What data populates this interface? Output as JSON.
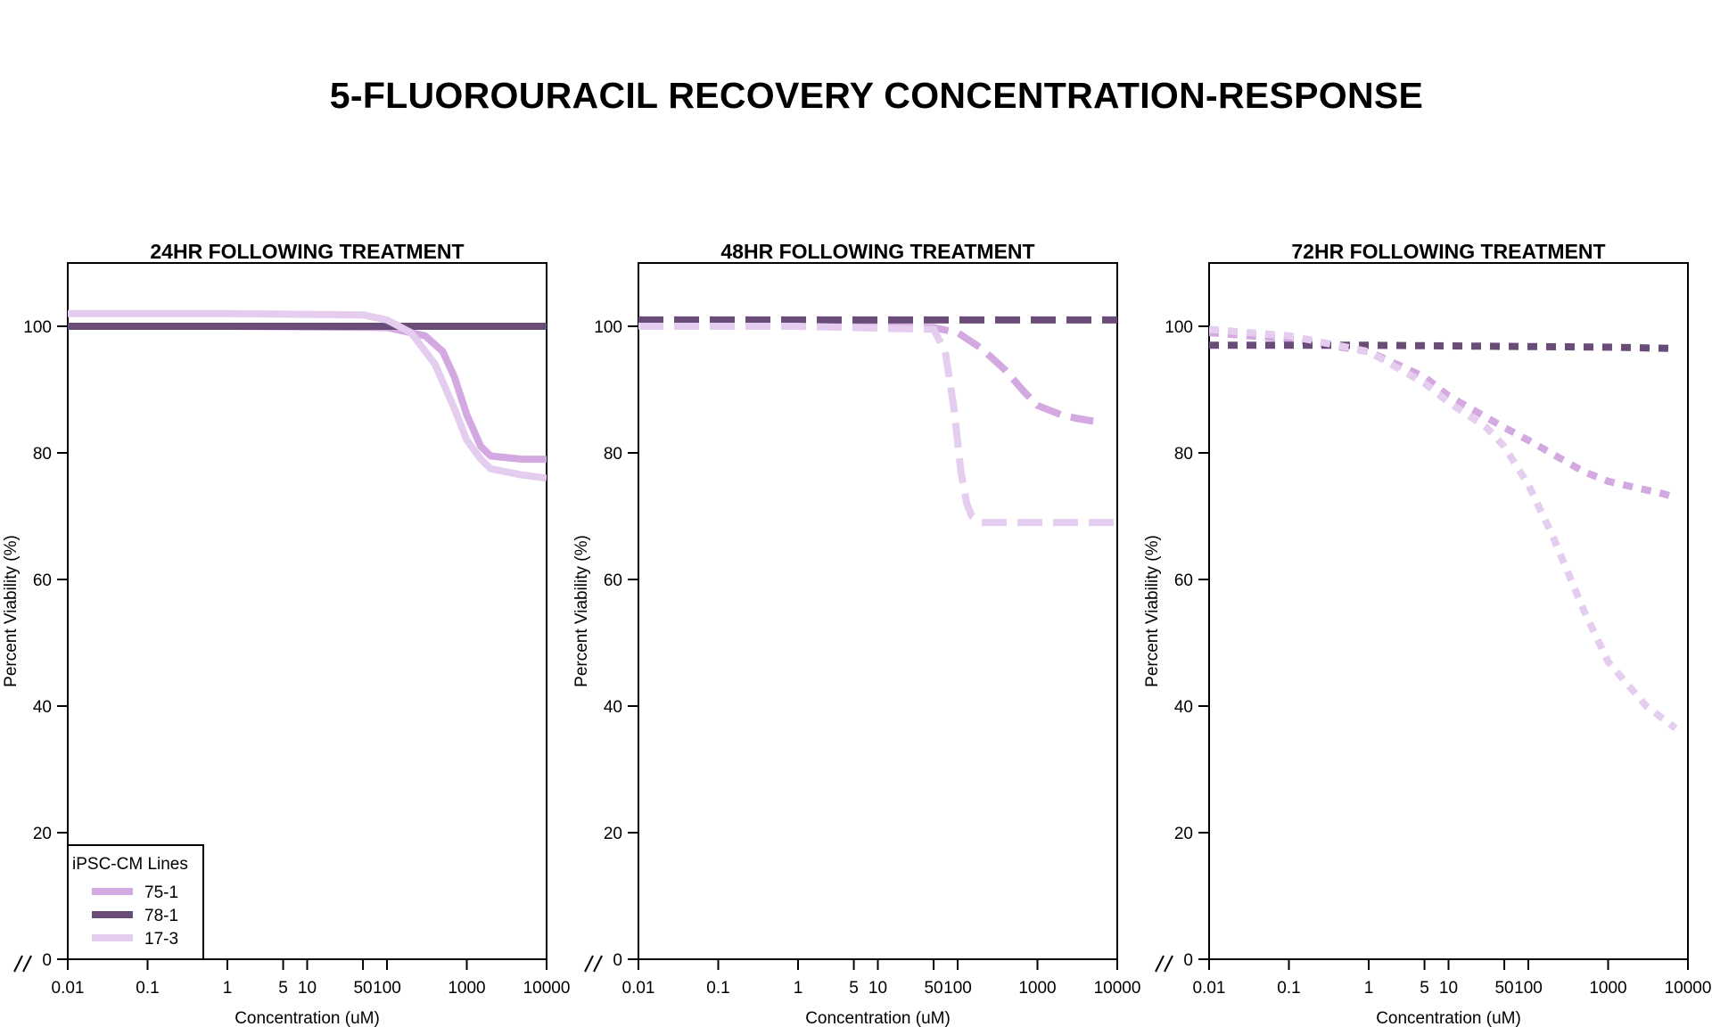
{
  "title": "5-FLUOROURACIL RECOVERY CONCENTRATION-RESPONSE",
  "colors": {
    "75-1": "#d4a8e0",
    "78-1": "#6a4c78",
    "17-3": "#e5cdef"
  },
  "legend": {
    "title": "iPSC-CM Lines",
    "entries": [
      "75-1",
      "78-1",
      "17-3"
    ]
  },
  "chart_data": [
    {
      "type": "line",
      "title": "24HR FOLLOWING TREATMENT",
      "xlabel": "Concentration (uM)",
      "ylabel": "Percent Viability (%)",
      "x_scale": "log",
      "xlim": [
        0.01,
        10000
      ],
      "ylim": [
        0,
        110
      ],
      "x_ticks": [
        "0.01",
        "0.1",
        "1",
        "5",
        "10",
        "50",
        "100",
        "1000",
        "10000"
      ],
      "y_ticks": [
        "0",
        "20",
        "40",
        "60",
        "80",
        "100"
      ],
      "line_style": "solid",
      "legend_placement": "bottom-left",
      "series": [
        {
          "name": "75-1",
          "x": [
            0.01,
            1,
            100,
            300,
            500,
            700,
            1000,
            1500,
            2000,
            5000,
            10000
          ],
          "y": [
            100,
            100,
            99.8,
            98.5,
            96,
            92,
            86,
            81,
            79.5,
            79,
            79
          ]
        },
        {
          "name": "78-1",
          "x": [
            0.01,
            1,
            100,
            1000,
            10000
          ],
          "y": [
            100,
            100,
            100,
            100,
            100
          ]
        },
        {
          "name": "17-3",
          "x": [
            0.01,
            1,
            50,
            100,
            200,
            400,
            700,
            1000,
            1500,
            2000,
            5000,
            10000
          ],
          "y": [
            102,
            102,
            101.8,
            101,
            99,
            94,
            87,
            82,
            79,
            77.5,
            76.5,
            76
          ]
        }
      ]
    },
    {
      "type": "line",
      "title": "48HR FOLLOWING TREATMENT",
      "xlabel": "Concentration (uM)",
      "ylabel": "Percent Viability (%)",
      "x_scale": "log",
      "xlim": [
        0.01,
        10000
      ],
      "ylim": [
        0,
        110
      ],
      "x_ticks": [
        "0.01",
        "0.1",
        "1",
        "5",
        "10",
        "50",
        "100",
        "1000",
        "10000"
      ],
      "y_ticks": [
        "0",
        "20",
        "40",
        "60",
        "80",
        "100"
      ],
      "line_style": "dashed",
      "series": [
        {
          "name": "75-1",
          "x": [
            0.01,
            1,
            50,
            100,
            200,
            400,
            700,
            1000,
            2000,
            3000,
            5000
          ],
          "y": [
            100,
            100,
            99.8,
            99,
            96.5,
            93,
            89.5,
            87.5,
            86,
            85.5,
            85
          ]
        },
        {
          "name": "78-1",
          "x": [
            0.01,
            1,
            100,
            1000,
            10000
          ],
          "y": [
            101,
            101,
            101,
            101,
            101
          ]
        },
        {
          "name": "17-3",
          "x": [
            0.01,
            1,
            50,
            70,
            90,
            110,
            130,
            150,
            200,
            1000,
            10000
          ],
          "y": [
            100,
            100,
            99.5,
            96,
            87,
            77,
            72,
            70,
            69,
            69,
            69
          ]
        }
      ]
    },
    {
      "type": "line",
      "title": "72HR FOLLOWING TREATMENT",
      "xlabel": "Concentration (uM)",
      "ylabel": "Percent Viability (%)",
      "x_scale": "log",
      "xlim": [
        0.01,
        10000
      ],
      "ylim": [
        0,
        110
      ],
      "x_ticks": [
        "0.01",
        "0.1",
        "1",
        "5",
        "10",
        "50",
        "100",
        "1000",
        "10000"
      ],
      "y_ticks": [
        "0",
        "20",
        "40",
        "60",
        "80",
        "100"
      ],
      "line_style": "dotted",
      "series": [
        {
          "name": "75-1",
          "x": [
            0.01,
            0.1,
            1,
            5,
            10,
            50,
            100,
            500,
            1000,
            5000,
            7000
          ],
          "y": [
            99,
            98,
            96,
            92,
            89,
            84,
            82,
            77,
            75.5,
            73.5,
            73
          ]
        },
        {
          "name": "78-1",
          "x": [
            0.01,
            1,
            100,
            1000,
            7000
          ],
          "y": [
            97,
            97,
            96.8,
            96.7,
            96.5
          ]
        },
        {
          "name": "17-3",
          "x": [
            0.01,
            0.1,
            1,
            5,
            10,
            30,
            50,
            100,
            200,
            500,
            1000,
            3000,
            7000
          ],
          "y": [
            99.5,
            98.5,
            96,
            91,
            88,
            84,
            81,
            75,
            67,
            55,
            47,
            40,
            36.5
          ]
        }
      ]
    }
  ]
}
